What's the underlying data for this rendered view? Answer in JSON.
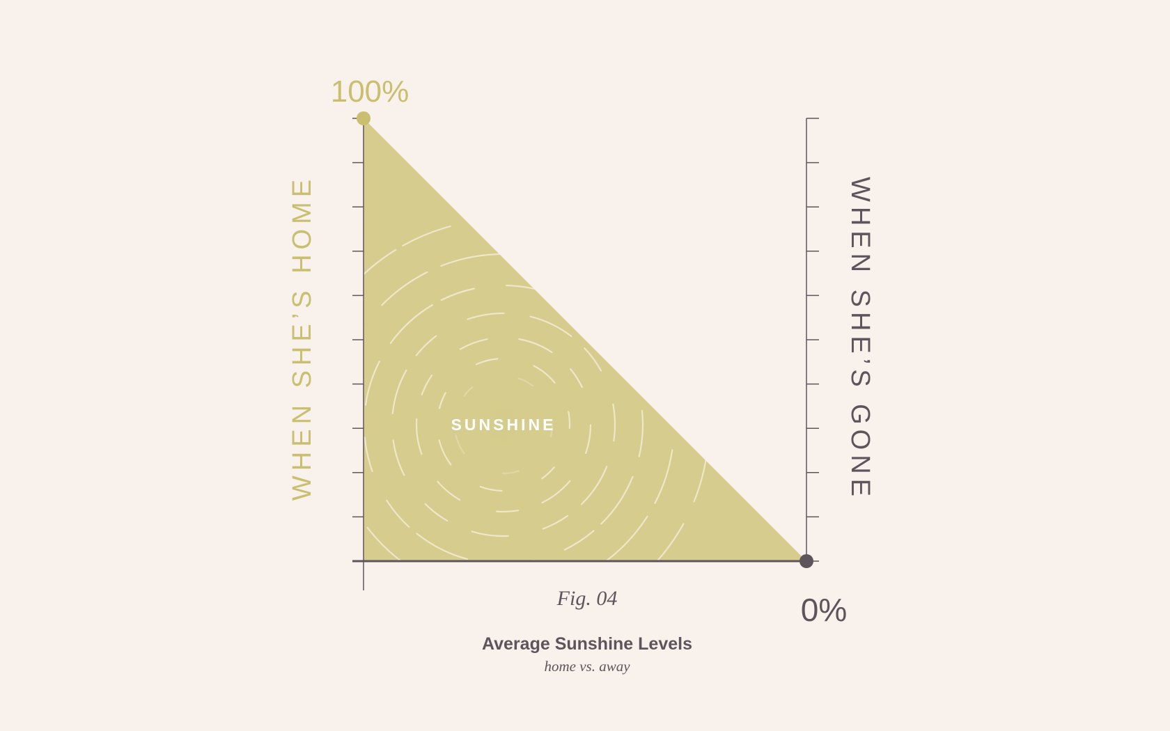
{
  "colors": {
    "background": "#f8f1ec",
    "home": "#c9bf6f",
    "area_fill": "#d6cc8e",
    "gone": "#5e555c",
    "axis": "#5e555c"
  },
  "chart_data": {
    "type": "area",
    "x": [
      0,
      1
    ],
    "values": [
      100,
      0
    ],
    "ylim": [
      0,
      100
    ],
    "y_ticks": 11,
    "area_label": "SUNSHINE",
    "start_label": "100%",
    "end_label": "0%",
    "left_axis_label": "WHEN SHE’S HOME",
    "right_axis_label": "WHEN SHE’S GONE",
    "figure_number": "Fig. 04",
    "title": "Average Sunshine Levels",
    "subtitle": "home vs. away",
    "grid": false
  }
}
